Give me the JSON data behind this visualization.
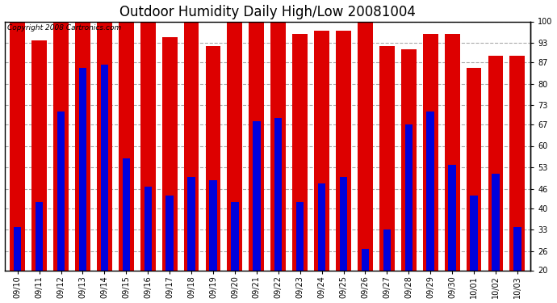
{
  "title": "Outdoor Humidity Daily High/Low 20081004",
  "copyright": "Copyright 2008 Cartronics.com",
  "dates": [
    "09/10",
    "09/11",
    "09/12",
    "09/13",
    "09/14",
    "09/15",
    "09/16",
    "09/17",
    "09/18",
    "09/19",
    "09/20",
    "09/21",
    "09/22",
    "09/23",
    "09/24",
    "09/25",
    "09/26",
    "09/27",
    "09/28",
    "09/29",
    "09/30",
    "10/01",
    "10/02",
    "10/03"
  ],
  "highs": [
    100,
    94,
    100,
    100,
    100,
    100,
    100,
    95,
    100,
    92,
    100,
    100,
    100,
    96,
    97,
    97,
    100,
    92,
    91,
    96,
    96,
    85,
    89,
    89
  ],
  "lows": [
    34,
    42,
    71,
    85,
    86,
    56,
    47,
    44,
    50,
    49,
    42,
    68,
    69,
    42,
    48,
    50,
    27,
    33,
    67,
    71,
    54,
    44,
    51,
    34
  ],
  "high_color": "#dd0000",
  "low_color": "#0000dd",
  "bg_color": "#ffffff",
  "plot_bg": "#ffffff",
  "grid_color": "#aaaaaa",
  "yticks": [
    20,
    26,
    33,
    40,
    46,
    53,
    60,
    67,
    73,
    80,
    87,
    93,
    100
  ],
  "ymin": 20,
  "ymax": 100,
  "red_bar_width": 0.7,
  "blue_bar_width": 0.35,
  "title_fontsize": 12,
  "tick_fontsize": 7,
  "copyright_fontsize": 6.5
}
